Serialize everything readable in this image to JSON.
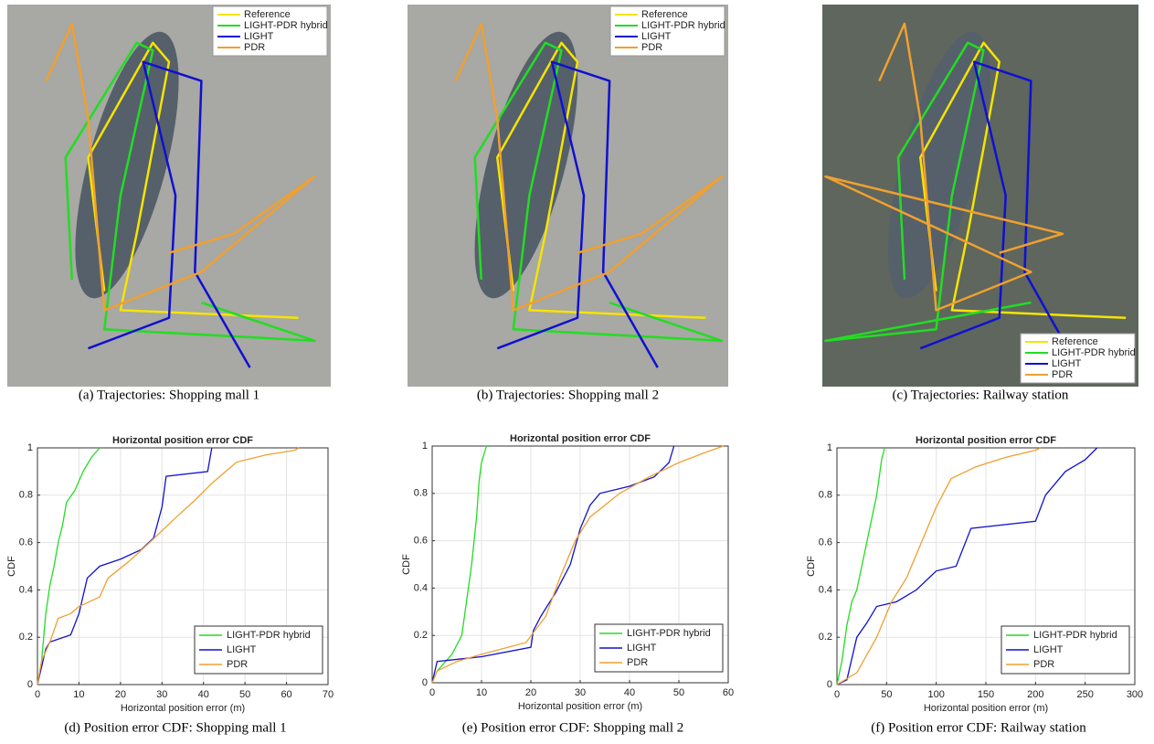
{
  "chart_data": [
    {
      "type": "image",
      "caption": "(a) Trajectories: Shopping mall 1",
      "legend": "upper right",
      "series": [
        {
          "name": "Reference",
          "color": "#f5e400"
        },
        {
          "name": "LIGHT-PDR hybrid",
          "color": "#22dd22"
        },
        {
          "name": "LIGHT",
          "color": "#1010d0"
        },
        {
          "name": "PDR",
          "color": "#f0a030"
        }
      ]
    },
    {
      "type": "image",
      "caption": "(b) Trajectories: Shopping mall 2",
      "legend": "upper right",
      "series": [
        {
          "name": "Reference",
          "color": "#f5e400"
        },
        {
          "name": "LIGHT-PDR hybrid",
          "color": "#22dd22"
        },
        {
          "name": "LIGHT",
          "color": "#1010d0"
        },
        {
          "name": "PDR",
          "color": "#f0a030"
        }
      ]
    },
    {
      "type": "image",
      "caption": "(c) Trajectories: Railway station",
      "legend": "lower right",
      "series": [
        {
          "name": "Reference",
          "color": "#f5e400"
        },
        {
          "name": "LIGHT-PDR hybrid",
          "color": "#22dd22"
        },
        {
          "name": "LIGHT",
          "color": "#1010d0"
        },
        {
          "name": "PDR",
          "color": "#f0a030"
        }
      ]
    },
    {
      "type": "line",
      "title": "Horizontal position error CDF",
      "xlabel": "Horizontal position error (m)",
      "ylabel": "CDF",
      "caption": "(d) Position error CDF: Shopping mall 1",
      "legend": "lower right",
      "grid": true,
      "xlim": [
        0,
        70
      ],
      "ylim": [
        0,
        1
      ],
      "xticks": [
        0,
        10,
        20,
        30,
        40,
        50,
        60,
        70
      ],
      "yticks": [
        0,
        0.2,
        0.4,
        0.6,
        0.8,
        1
      ],
      "series": [
        {
          "name": "LIGHT-PDR hybrid",
          "color": "#22dd22",
          "x": [
            0,
            1,
            2,
            3,
            4,
            5,
            6,
            7,
            9,
            11,
            13,
            15
          ],
          "values": [
            0,
            0.1,
            0.3,
            0.42,
            0.5,
            0.6,
            0.67,
            0.77,
            0.82,
            0.9,
            0.96,
            1
          ]
        },
        {
          "name": "LIGHT",
          "color": "#1010d0",
          "x": [
            0,
            2,
            3,
            8,
            10,
            12,
            15,
            20,
            25,
            28,
            30,
            31,
            41,
            42
          ],
          "values": [
            0,
            0.15,
            0.18,
            0.21,
            0.3,
            0.45,
            0.5,
            0.53,
            0.57,
            0.62,
            0.75,
            0.88,
            0.9,
            1
          ]
        },
        {
          "name": "PDR",
          "color": "#f0a030",
          "x": [
            0,
            1,
            3,
            5,
            8,
            10,
            15,
            17,
            22,
            27,
            33,
            38,
            42,
            48,
            55,
            62,
            63
          ],
          "values": [
            0,
            0.1,
            0.18,
            0.28,
            0.3,
            0.33,
            0.37,
            0.45,
            0.52,
            0.6,
            0.7,
            0.78,
            0.85,
            0.94,
            0.97,
            0.99,
            1
          ]
        }
      ]
    },
    {
      "type": "line",
      "title": "Horizontal position error CDF",
      "xlabel": "Horizontal position error (m)",
      "ylabel": "CDF",
      "caption": "(e) Position error CDF: Shopping mall 2",
      "legend": "lower right",
      "grid": true,
      "xlim": [
        0,
        60
      ],
      "ylim": [
        0,
        1
      ],
      "xticks": [
        0,
        10,
        20,
        30,
        40,
        50,
        60
      ],
      "yticks": [
        0,
        0.2,
        0.4,
        0.6,
        0.8,
        1
      ],
      "series": [
        {
          "name": "LIGHT-PDR hybrid",
          "color": "#22dd22",
          "x": [
            0,
            1,
            4,
            6,
            7,
            8,
            9,
            9.5,
            10,
            11
          ],
          "values": [
            0,
            0.05,
            0.12,
            0.2,
            0.35,
            0.5,
            0.7,
            0.85,
            0.93,
            1
          ]
        },
        {
          "name": "LIGHT",
          "color": "#1010d0",
          "x": [
            0,
            1,
            10,
            20,
            20.5,
            22,
            25,
            28,
            30,
            32,
            34,
            40,
            45,
            48,
            49
          ],
          "values": [
            0,
            0.09,
            0.11,
            0.15,
            0.22,
            0.28,
            0.38,
            0.5,
            0.65,
            0.75,
            0.8,
            0.83,
            0.87,
            0.93,
            1
          ]
        },
        {
          "name": "PDR",
          "color": "#f0a030",
          "x": [
            0,
            1,
            5,
            10,
            19,
            23,
            26,
            29,
            32,
            38,
            44,
            50,
            55,
            59
          ],
          "values": [
            0,
            0.05,
            0.09,
            0.12,
            0.17,
            0.28,
            0.45,
            0.6,
            0.7,
            0.8,
            0.87,
            0.93,
            0.97,
            1
          ]
        }
      ]
    },
    {
      "type": "line",
      "title": "Horizontal position error CDF",
      "xlabel": "Horizontal position error (m)",
      "ylabel": "CDF",
      "caption": "(f) Position error CDF: Railway station",
      "legend": "lower right",
      "grid": true,
      "xlim": [
        0,
        300
      ],
      "ylim": [
        0,
        1
      ],
      "xticks": [
        0,
        50,
        100,
        150,
        200,
        250,
        300
      ],
      "yticks": [
        0,
        0.2,
        0.4,
        0.6,
        0.8,
        1
      ],
      "series": [
        {
          "name": "LIGHT-PDR hybrid",
          "color": "#22dd22",
          "x": [
            0,
            5,
            10,
            15,
            20,
            30,
            40,
            45,
            48
          ],
          "values": [
            0,
            0.1,
            0.25,
            0.35,
            0.4,
            0.6,
            0.8,
            0.95,
            1
          ]
        },
        {
          "name": "LIGHT",
          "color": "#1010d0",
          "x": [
            0,
            10,
            20,
            30,
            40,
            60,
            80,
            100,
            120,
            135,
            200,
            210,
            230,
            250,
            262
          ],
          "values": [
            0,
            0.02,
            0.2,
            0.26,
            0.33,
            0.35,
            0.4,
            0.48,
            0.5,
            0.66,
            0.69,
            0.8,
            0.9,
            0.95,
            1
          ]
        },
        {
          "name": "PDR",
          "color": "#f0a030",
          "x": [
            0,
            20,
            40,
            55,
            70,
            85,
            100,
            115,
            140,
            170,
            200,
            205
          ],
          "values": [
            0,
            0.05,
            0.2,
            0.35,
            0.45,
            0.6,
            0.75,
            0.87,
            0.92,
            0.96,
            0.99,
            1
          ]
        }
      ]
    }
  ]
}
